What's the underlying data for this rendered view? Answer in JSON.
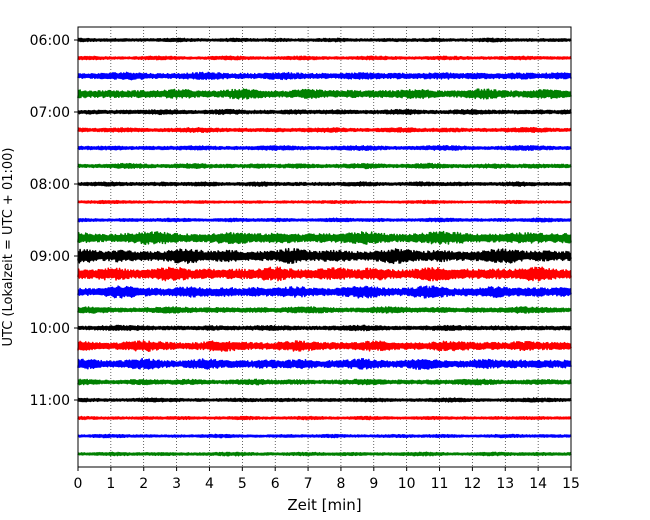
{
  "chart_data": {
    "type": "line",
    "title": "",
    "xlabel": "Zeit  [min]",
    "ylabel": "UTC (Lokalzeit = UTC + 01:00)",
    "xlim": [
      0,
      15
    ],
    "x_ticks": [
      0,
      1,
      2,
      3,
      4,
      5,
      6,
      7,
      8,
      9,
      10,
      11,
      12,
      13,
      14,
      15
    ],
    "x_tick_labels": [
      "0",
      "1",
      "2",
      "3",
      "4",
      "5",
      "6",
      "7",
      "8",
      "9",
      "10",
      "11",
      "12",
      "13",
      "14",
      "15"
    ],
    "y_tick_labels": [
      "06:00",
      "07:00",
      "08:00",
      "09:00",
      "10:00",
      "11:00"
    ],
    "grid": "vertical dotted lines at each minute",
    "trace_interval_minutes": 15,
    "traces": [
      {
        "start": "06:00",
        "color": "#000000",
        "amplitude": 0.1
      },
      {
        "start": "06:15",
        "color": "#ff0000",
        "amplitude": 0.1
      },
      {
        "start": "06:30",
        "color": "#0000ff",
        "amplitude": 0.22
      },
      {
        "start": "06:45",
        "color": "#008000",
        "amplitude": 0.28
      },
      {
        "start": "07:00",
        "color": "#000000",
        "amplitude": 0.14
      },
      {
        "start": "07:15",
        "color": "#ff0000",
        "amplitude": 0.13
      },
      {
        "start": "07:30",
        "color": "#0000ff",
        "amplitude": 0.13
      },
      {
        "start": "07:45",
        "color": "#008000",
        "amplitude": 0.14
      },
      {
        "start": "08:00",
        "color": "#000000",
        "amplitude": 0.12
      },
      {
        "start": "08:15",
        "color": "#ff0000",
        "amplitude": 0.08
      },
      {
        "start": "08:30",
        "color": "#0000ff",
        "amplitude": 0.1
      },
      {
        "start": "08:45",
        "color": "#008000",
        "amplitude": 0.36
      },
      {
        "start": "09:00",
        "color": "#000000",
        "amplitude": 0.42
      },
      {
        "start": "09:15",
        "color": "#ff0000",
        "amplitude": 0.4
      },
      {
        "start": "09:30",
        "color": "#0000ff",
        "amplitude": 0.34
      },
      {
        "start": "09:45",
        "color": "#008000",
        "amplitude": 0.18
      },
      {
        "start": "10:00",
        "color": "#000000",
        "amplitude": 0.15
      },
      {
        "start": "10:15",
        "color": "#ff0000",
        "amplitude": 0.3
      },
      {
        "start": "10:30",
        "color": "#0000ff",
        "amplitude": 0.3
      },
      {
        "start": "10:45",
        "color": "#008000",
        "amplitude": 0.16
      },
      {
        "start": "11:00",
        "color": "#000000",
        "amplitude": 0.11
      },
      {
        "start": "11:15",
        "color": "#ff0000",
        "amplitude": 0.09
      },
      {
        "start": "11:30",
        "color": "#0000ff",
        "amplitude": 0.09
      },
      {
        "start": "11:45",
        "color": "#008000",
        "amplitude": 0.1
      }
    ]
  }
}
